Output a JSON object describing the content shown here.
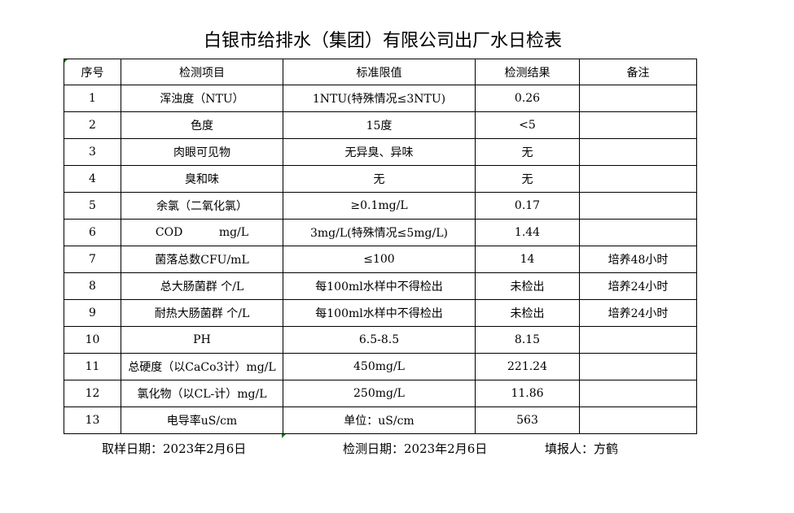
{
  "title": "白银市给排水（集团）有限公司出厂水日检表",
  "headers": [
    "序号",
    "检测项目",
    "标准限值",
    "检测结果",
    "备注"
  ],
  "rows": [
    [
      "1",
      "浑浊度（NTU）",
      "1NTU(特殊情况≤3NTU)",
      "0.26",
      ""
    ],
    [
      "2",
      "色度",
      "15度",
      "<5",
      ""
    ],
    [
      "3",
      "肉眼可见物",
      "无异臭、异味",
      "无",
      ""
    ],
    [
      "4",
      "臭和味",
      "无",
      "无",
      ""
    ],
    [
      "5",
      "余氯（二氧化氯）",
      "≥0.1mg/L",
      "0.17",
      ""
    ],
    [
      "6",
      "COD          mg/L",
      "3mg/L(特殊情况≤5mg/L)",
      "1.44",
      ""
    ],
    [
      "7",
      "菌落总数CFU/mL",
      "≤100",
      "14",
      "培养48小时"
    ],
    [
      "8",
      "总大肠菌群 个/L",
      "每100ml水样中不得检出",
      "未检出",
      "培养24小时"
    ],
    [
      "9",
      "耐热大肠菌群 个/L",
      "每100ml水样中不得检出",
      "未检出",
      "培养24小时"
    ],
    [
      "10",
      "PH",
      "6.5-8.5",
      "8.15",
      ""
    ],
    [
      "11",
      "总硬度（以CaCo3计）mg/L",
      "450mg/L",
      "221.24",
      ""
    ],
    [
      "12",
      "氯化物（以CL-计）mg/L",
      "250mg/L",
      "11.86",
      ""
    ],
    [
      "13",
      "电导率uS/cm",
      "单位：uS/cm",
      "563",
      ""
    ]
  ],
  "footer": {
    "sample_date": "取样日期：2023年2月6日",
    "test_date": "检测日期：2023年2月6日",
    "reporter": "填报人：方鹤"
  }
}
